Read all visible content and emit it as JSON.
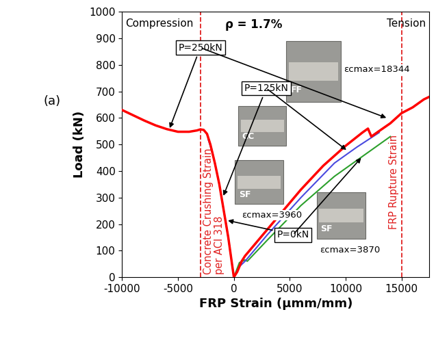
{
  "chart_data": {
    "type": "line",
    "title": "ρ = 1.7%",
    "panel_label": "(a)",
    "x_label": "FRP Strain (μmm/mm)",
    "y_label": "Load (kN)",
    "region_labels": [
      "Compression",
      "Tension"
    ],
    "xlim": [
      -10000,
      17500
    ],
    "xticks": [
      -10000,
      -5000,
      0,
      5000,
      10000,
      15000
    ],
    "ylim": [
      0,
      1000
    ],
    "yticks": [
      0,
      100,
      200,
      300,
      400,
      500,
      600,
      700,
      800,
      900,
      1000
    ],
    "grid": false,
    "reference_lines": [
      {
        "value": -3000,
        "label": "Concrete Crushing Strain\nper ACI 318",
        "color": "#e02020",
        "line_style": "dashed"
      },
      {
        "value": 15000,
        "label": "FRP Rupture Strain",
        "color": "#e02020",
        "line_style": "dashed"
      }
    ],
    "photos": [
      "FF",
      "CC",
      "SF",
      "SF"
    ],
    "strain_labels": [
      "εcmax=18344",
      "εcmax=3960",
      "εcmax=3870"
    ],
    "series": [
      {
        "name": "P=0kN",
        "color": "#2ca02c",
        "x": [
          -2000,
          -1700,
          -1300,
          -900,
          -500,
          -200,
          0,
          500,
          1000,
          1200,
          3000,
          6000,
          9000,
          12000,
          14000
        ],
        "values": [
          485,
          430,
          350,
          250,
          150,
          60,
          0,
          55,
          65,
          60,
          140,
          270,
          380,
          470,
          530
        ]
      },
      {
        "name": "P=125kN",
        "color": "#4a4adf",
        "x": [
          -2300,
          -2000,
          -1700,
          -1300,
          -900,
          -500,
          -200,
          0,
          500,
          1000,
          3000,
          6000,
          9000,
          11000,
          13000
        ],
        "values": [
          520,
          480,
          430,
          350,
          250,
          150,
          60,
          0,
          40,
          60,
          160,
          300,
          430,
          490,
          545
        ]
      },
      {
        "name": "P=250kN",
        "color": "#ff0000",
        "x": [
          -10000,
          -9000,
          -8000,
          -7000,
          -6000,
          -5000,
          -4000,
          -3300,
          -3000,
          -2700,
          -2400,
          -2100,
          -1700,
          -1300,
          -900,
          -500,
          -200,
          0,
          300,
          700,
          1000,
          2000,
          4000,
          6000,
          8000,
          10000,
          11500,
          12000,
          12300,
          12800,
          14000,
          15000,
          16000,
          17000,
          17500
        ],
        "values": [
          630,
          610,
          590,
          572,
          558,
          548,
          548,
          553,
          557,
          555,
          540,
          500,
          430,
          350,
          250,
          150,
          60,
          0,
          20,
          60,
          80,
          130,
          230,
          330,
          420,
          495,
          545,
          560,
          530,
          545,
          580,
          618,
          640,
          670,
          680
        ]
      }
    ]
  }
}
